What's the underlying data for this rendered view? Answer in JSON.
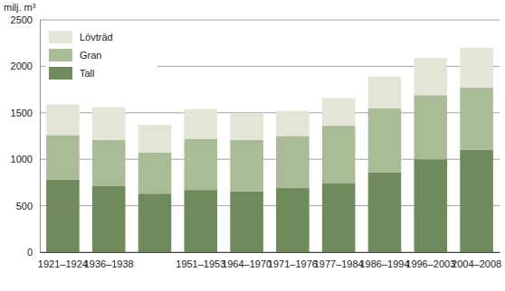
{
  "chart_data": {
    "type": "bar",
    "stacked": true,
    "y_label": "milj. m³",
    "categories": [
      "1921–1924",
      "1936–1938",
      null,
      "1951–1953",
      "1964–1970",
      "1971–1976",
      "1977–1984",
      "1986–1994",
      "1996–2003",
      "2004–2008"
    ],
    "series": [
      {
        "name": "Tall",
        "color": "#6f8a5b",
        "values": [
          780,
          710,
          630,
          670,
          655,
          690,
          740,
          860,
          1000,
          1100
        ]
      },
      {
        "name": "Gran",
        "color": "#aabb98",
        "values": [
          480,
          500,
          440,
          550,
          555,
          560,
          620,
          690,
          690,
          670
        ]
      },
      {
        "name": "Lövträd",
        "color": "#e3e6d6",
        "values": [
          330,
          350,
          300,
          320,
          280,
          270,
          300,
          340,
          400,
          430
        ]
      }
    ],
    "ylim": [
      0,
      2500
    ],
    "yticks": [
      0,
      500,
      1000,
      1500,
      2000,
      2500
    ],
    "grid": true,
    "legend": "upper left"
  }
}
